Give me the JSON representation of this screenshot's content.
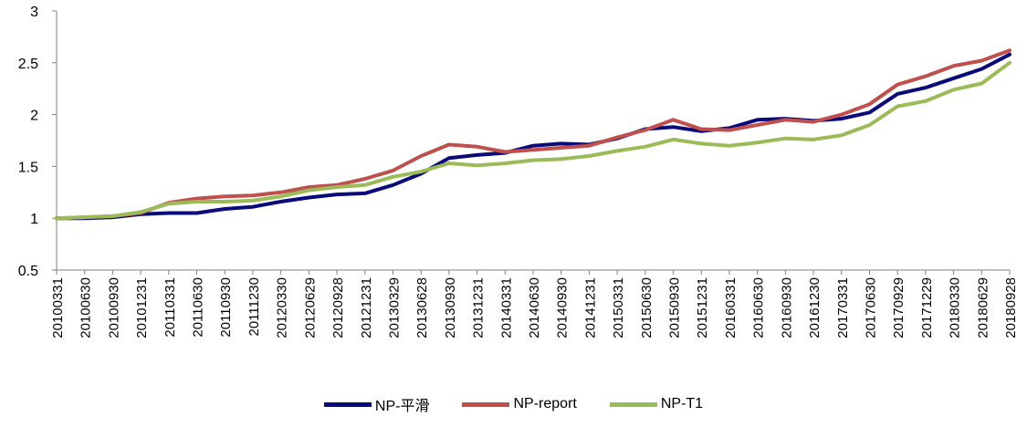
{
  "chart_data": {
    "type": "line",
    "title": "",
    "xlabel": "",
    "ylabel": "",
    "ylim": [
      0.5,
      3
    ],
    "yticks": [
      "0.5",
      "1",
      "1.5",
      "2",
      "2.5",
      "3"
    ],
    "x_tick_labels": [
      "20100331",
      "20100630",
      "20100930",
      "20101231",
      "20110331",
      "20110630",
      "20110930",
      "20111230",
      "20120330",
      "20120629",
      "20120928",
      "20121231",
      "20130329",
      "20130628",
      "20130930",
      "20131231",
      "20140331",
      "20140630",
      "20140930",
      "20141231",
      "20150331",
      "20150630",
      "20150930",
      "20151231",
      "20160331",
      "20160630",
      "20160930",
      "20161230",
      "20170331",
      "20170630",
      "20170929",
      "20171229",
      "20180330",
      "20180629",
      "20180928"
    ],
    "series": [
      {
        "name": "NP-平滑",
        "color": "#0a0a7a",
        "values": [
          1.0,
          1.0,
          1.01,
          1.04,
          1.05,
          1.05,
          1.09,
          1.11,
          1.16,
          1.2,
          1.23,
          1.24,
          1.32,
          1.43,
          1.58,
          1.61,
          1.63,
          1.7,
          1.72,
          1.71,
          1.77,
          1.86,
          1.88,
          1.84,
          1.87,
          1.95,
          1.96,
          1.94,
          1.96,
          2.02,
          2.2,
          2.26,
          2.35,
          2.44,
          2.58
        ]
      },
      {
        "name": "NP-report",
        "color": "#c0504d",
        "values": [
          1.0,
          1.01,
          1.02,
          1.05,
          1.15,
          1.19,
          1.21,
          1.22,
          1.25,
          1.3,
          1.32,
          1.38,
          1.46,
          1.6,
          1.71,
          1.69,
          1.64,
          1.66,
          1.68,
          1.7,
          1.78,
          1.85,
          1.95,
          1.86,
          1.85,
          1.9,
          1.95,
          1.93,
          2.0,
          2.1,
          2.29,
          2.37,
          2.47,
          2.52,
          2.62
        ]
      },
      {
        "name": "NP-T1",
        "color": "#9bbb59",
        "values": [
          1.0,
          1.01,
          1.02,
          1.06,
          1.14,
          1.16,
          1.16,
          1.17,
          1.21,
          1.27,
          1.3,
          1.32,
          1.4,
          1.45,
          1.53,
          1.51,
          1.53,
          1.56,
          1.57,
          1.6,
          1.65,
          1.69,
          1.76,
          1.72,
          1.7,
          1.73,
          1.77,
          1.76,
          1.8,
          1.9,
          2.08,
          2.13,
          2.24,
          2.3,
          2.5
        ]
      }
    ]
  }
}
